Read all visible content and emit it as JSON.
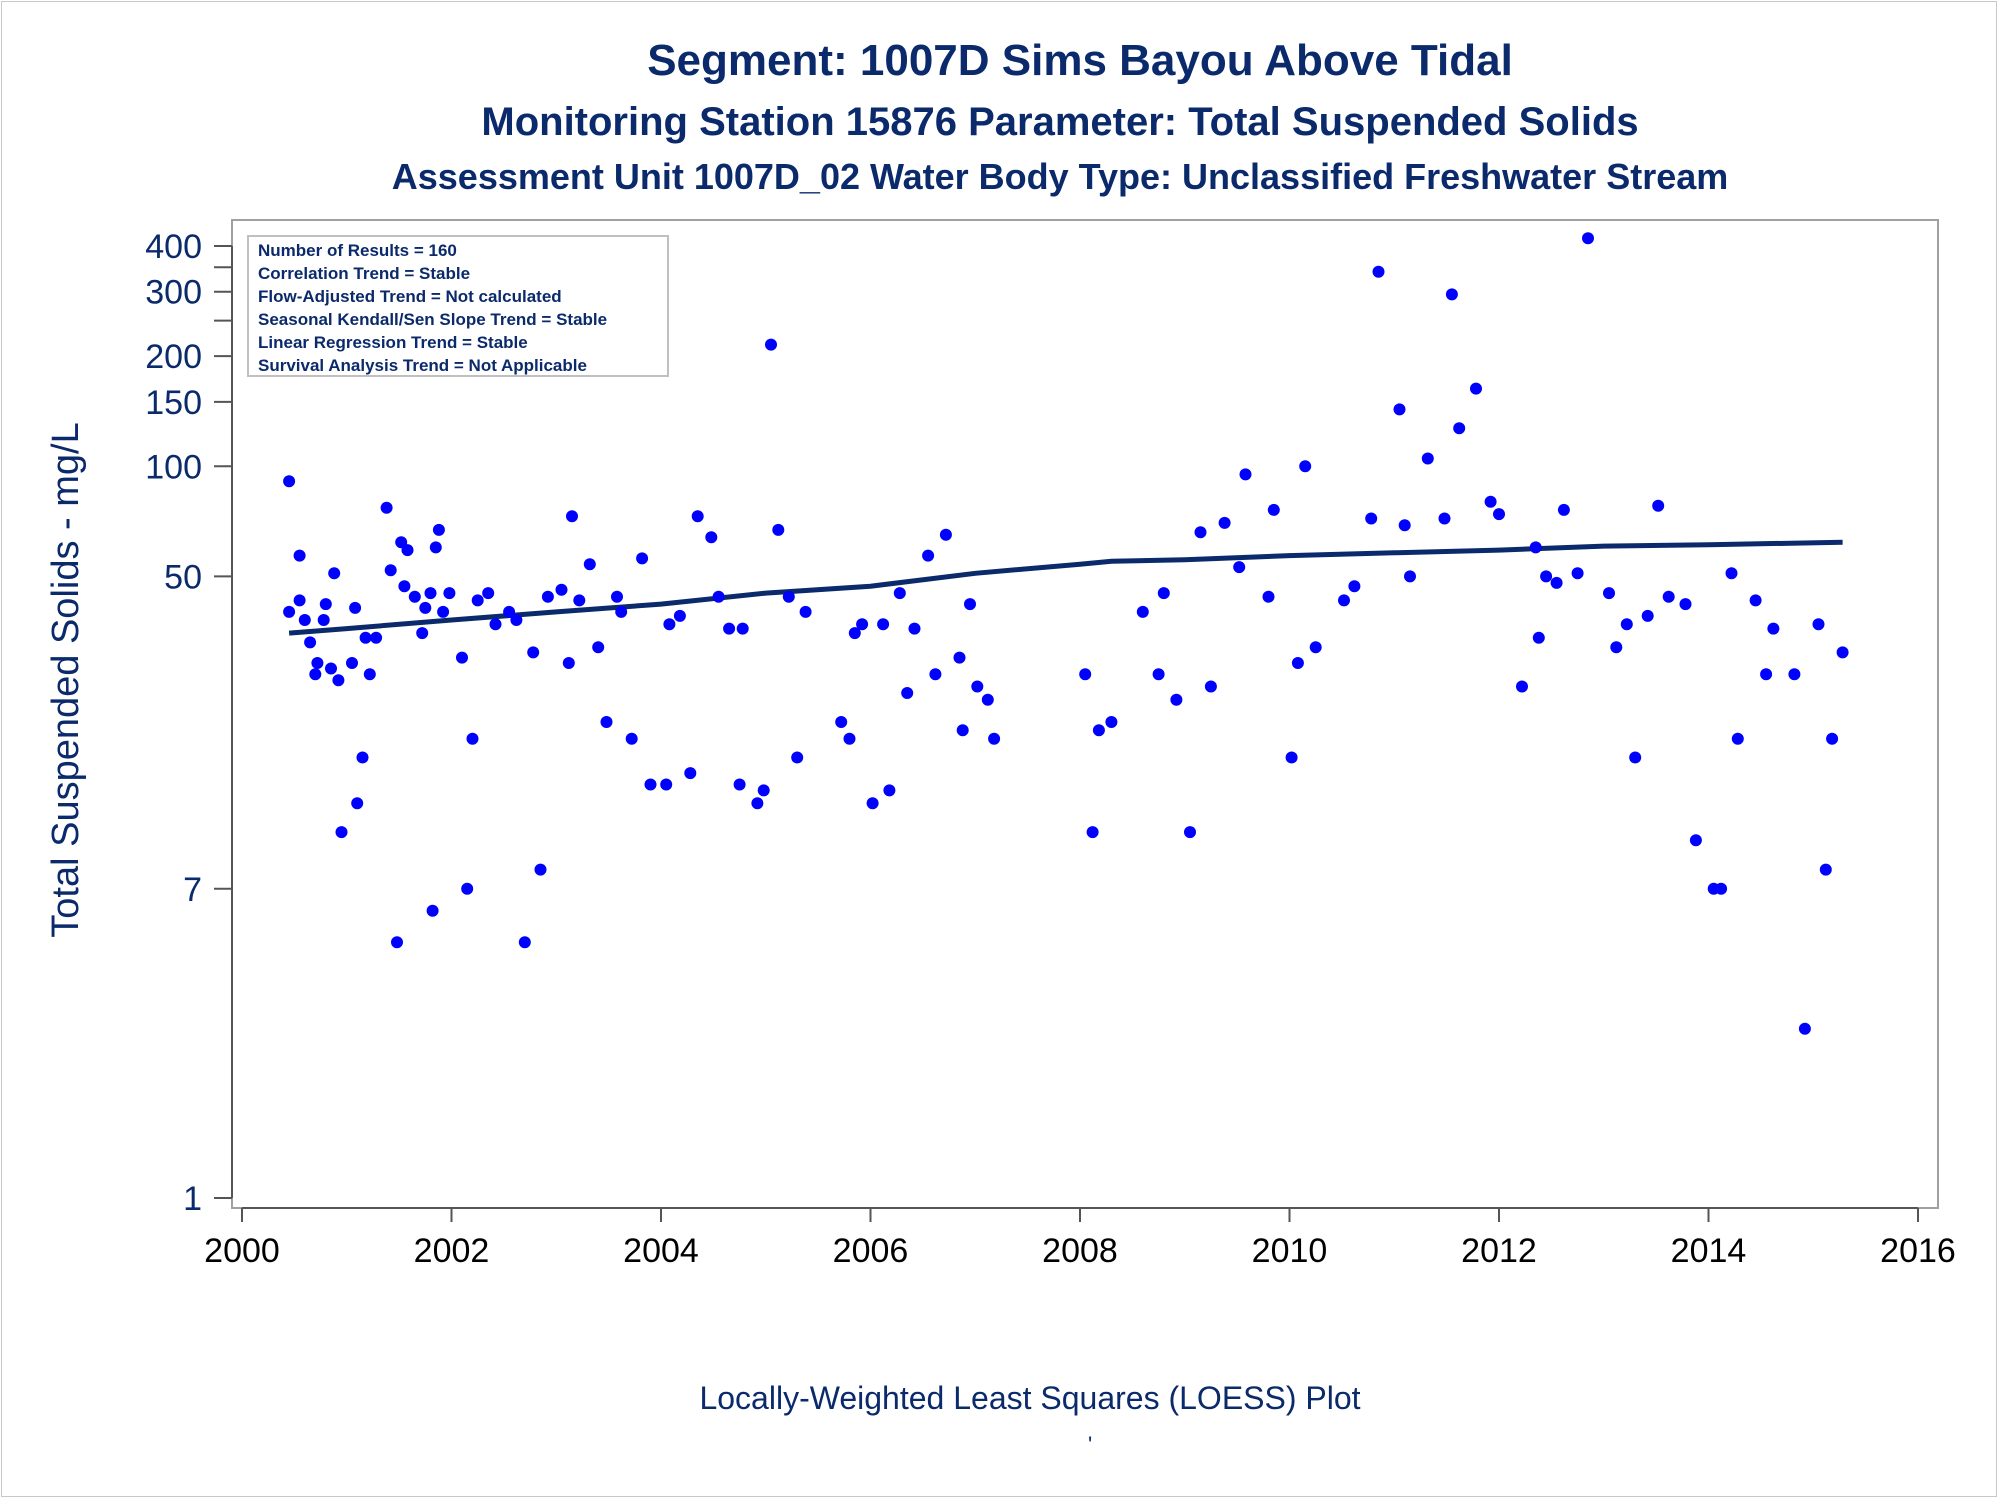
{
  "titles": {
    "line1": "Segment: 1007D  Sims Bayou Above Tidal",
    "line2": "Monitoring Station 15876 Parameter: Total Suspended Solids",
    "line3": "Assessment Unit 1007D_02   Water Body Type: Unclassified Freshwater Stream"
  },
  "legend_box": [
    "Number of Results = 160",
    "Correlation Trend = Stable",
    "Flow-Adjusted Trend = Not calculated",
    "Seasonal Kendall/Sen Slope Trend = Stable",
    "Linear Regression Trend = Stable",
    "Survival Analysis Trend = Not Applicable"
  ],
  "footnote": "Locally-Weighted Least Squares (LOESS) Plot",
  "footnote_mark": "'",
  "colors": {
    "text": "#0b2a6b",
    "points": "#0000ff",
    "line": "#0b2a6b",
    "axis": "#a0a0a0"
  },
  "chart_data": {
    "type": "scatter",
    "ylabel": "Total Suspended Solids - mg/L",
    "xlabel": "",
    "yscale": "log",
    "xlim": [
      2000,
      2016
    ],
    "ylim": [
      1,
      420
    ],
    "xticks": [
      "2000",
      "2002",
      "2004",
      "2006",
      "2008",
      "2010",
      "2012",
      "2014",
      "2016"
    ],
    "yticks": [
      {
        "v": 1,
        "label": "1"
      },
      {
        "v": 7,
        "label": "7"
      },
      {
        "v": 50,
        "label": "50"
      },
      {
        "v": 100,
        "label": "100"
      },
      {
        "v": 150,
        "label": "150"
      },
      {
        "v": 200,
        "label": "200"
      },
      {
        "v": 250,
        "label": ""
      },
      {
        "v": 300,
        "label": "300"
      },
      {
        "v": 350,
        "label": ""
      },
      {
        "v": 400,
        "label": "400"
      }
    ],
    "grid": false,
    "points": [
      [
        2000.45,
        91
      ],
      [
        2000.45,
        40
      ],
      [
        2000.55,
        57
      ],
      [
        2000.55,
        43
      ],
      [
        2000.6,
        38
      ],
      [
        2000.65,
        33
      ],
      [
        2000.7,
        27
      ],
      [
        2000.72,
        29
      ],
      [
        2000.78,
        38
      ],
      [
        2000.8,
        42
      ],
      [
        2000.85,
        28
      ],
      [
        2000.88,
        51
      ],
      [
        2000.92,
        26
      ],
      [
        2000.95,
        10
      ],
      [
        2001.05,
        29
      ],
      [
        2001.08,
        41
      ],
      [
        2001.1,
        12
      ],
      [
        2001.15,
        16
      ],
      [
        2001.18,
        34
      ],
      [
        2001.22,
        27
      ],
      [
        2001.28,
        34
      ],
      [
        2001.38,
        77
      ],
      [
        2001.42,
        52
      ],
      [
        2001.48,
        5
      ],
      [
        2001.52,
        62
      ],
      [
        2001.55,
        47
      ],
      [
        2001.58,
        59
      ],
      [
        2001.65,
        44
      ],
      [
        2001.72,
        35
      ],
      [
        2001.75,
        41
      ],
      [
        2001.8,
        45
      ],
      [
        2001.82,
        6.1
      ],
      [
        2001.85,
        60
      ],
      [
        2001.88,
        67
      ],
      [
        2001.92,
        40
      ],
      [
        2001.98,
        45
      ],
      [
        2002.1,
        30
      ],
      [
        2002.15,
        7
      ],
      [
        2002.2,
        18
      ],
      [
        2002.25,
        43
      ],
      [
        2002.35,
        45
      ],
      [
        2002.42,
        37
      ],
      [
        2002.55,
        40
      ],
      [
        2002.62,
        38
      ],
      [
        2002.7,
        5
      ],
      [
        2002.78,
        31
      ],
      [
        2002.85,
        7.9
      ],
      [
        2002.92,
        44
      ],
      [
        2003.05,
        46
      ],
      [
        2003.12,
        29
      ],
      [
        2003.15,
        73
      ],
      [
        2003.22,
        43
      ],
      [
        2003.32,
        54
      ],
      [
        2003.4,
        32
      ],
      [
        2003.48,
        20
      ],
      [
        2003.58,
        44
      ],
      [
        2003.62,
        40
      ],
      [
        2003.72,
        18
      ],
      [
        2003.82,
        56
      ],
      [
        2003.9,
        13.5
      ],
      [
        2004.05,
        13.5
      ],
      [
        2004.08,
        37
      ],
      [
        2004.18,
        39
      ],
      [
        2004.28,
        14.5
      ],
      [
        2004.35,
        73
      ],
      [
        2004.48,
        64
      ],
      [
        2004.55,
        44
      ],
      [
        2004.65,
        36
      ],
      [
        2004.75,
        13.5
      ],
      [
        2004.78,
        36
      ],
      [
        2004.92,
        12
      ],
      [
        2004.98,
        13
      ],
      [
        2005.05,
        215
      ],
      [
        2005.12,
        67
      ],
      [
        2005.22,
        44
      ],
      [
        2005.3,
        16
      ],
      [
        2005.38,
        40
      ],
      [
        2005.72,
        20
      ],
      [
        2005.8,
        18
      ],
      [
        2005.85,
        35
      ],
      [
        2005.92,
        37
      ],
      [
        2006.02,
        12
      ],
      [
        2006.12,
        37
      ],
      [
        2006.18,
        13
      ],
      [
        2006.28,
        45
      ],
      [
        2006.35,
        24
      ],
      [
        2006.42,
        36
      ],
      [
        2006.55,
        57
      ],
      [
        2006.62,
        27
      ],
      [
        2006.72,
        65
      ],
      [
        2006.85,
        30
      ],
      [
        2006.88,
        19
      ],
      [
        2006.95,
        42
      ],
      [
        2007.02,
        25
      ],
      [
        2007.12,
        23
      ],
      [
        2007.18,
        18
      ],
      [
        2008.05,
        27
      ],
      [
        2008.12,
        10
      ],
      [
        2008.18,
        19
      ],
      [
        2008.3,
        20
      ],
      [
        2008.6,
        40
      ],
      [
        2008.75,
        27
      ],
      [
        2008.8,
        45
      ],
      [
        2008.92,
        23
      ],
      [
        2009.05,
        10
      ],
      [
        2009.15,
        66
      ],
      [
        2009.25,
        25
      ],
      [
        2009.38,
        70
      ],
      [
        2009.52,
        53
      ],
      [
        2009.58,
        95
      ],
      [
        2009.8,
        44
      ],
      [
        2009.85,
        76
      ],
      [
        2010.02,
        16
      ],
      [
        2010.08,
        29
      ],
      [
        2010.15,
        100
      ],
      [
        2010.25,
        32
      ],
      [
        2010.52,
        43
      ],
      [
        2010.62,
        47
      ],
      [
        2010.78,
        72
      ],
      [
        2010.85,
        340
      ],
      [
        2011.05,
        143
      ],
      [
        2011.1,
        69
      ],
      [
        2011.15,
        50
      ],
      [
        2011.32,
        105
      ],
      [
        2011.48,
        72
      ],
      [
        2011.55,
        295
      ],
      [
        2011.62,
        127
      ],
      [
        2011.78,
        163
      ],
      [
        2011.92,
        80
      ],
      [
        2012.0,
        74
      ],
      [
        2012.22,
        25
      ],
      [
        2012.35,
        60
      ],
      [
        2012.38,
        34
      ],
      [
        2012.45,
        50
      ],
      [
        2012.55,
        48
      ],
      [
        2012.62,
        76
      ],
      [
        2012.75,
        51
      ],
      [
        2012.85,
        420
      ],
      [
        2013.05,
        45
      ],
      [
        2013.12,
        32
      ],
      [
        2013.22,
        37
      ],
      [
        2013.3,
        16
      ],
      [
        2013.42,
        39
      ],
      [
        2013.52,
        78
      ],
      [
        2013.62,
        44
      ],
      [
        2013.78,
        42
      ],
      [
        2013.88,
        9.5
      ],
      [
        2014.05,
        7
      ],
      [
        2014.12,
        7
      ],
      [
        2014.22,
        51
      ],
      [
        2014.28,
        18
      ],
      [
        2014.45,
        43
      ],
      [
        2014.55,
        27
      ],
      [
        2014.62,
        36
      ],
      [
        2014.82,
        27
      ],
      [
        2014.92,
        2.9
      ],
      [
        2015.05,
        37
      ],
      [
        2015.12,
        7.9
      ],
      [
        2015.18,
        18
      ],
      [
        2015.28,
        31
      ]
    ],
    "loess": [
      [
        2000.45,
        35
      ],
      [
        2001.0,
        36
      ],
      [
        2002.0,
        38
      ],
      [
        2003.0,
        40
      ],
      [
        2004.0,
        42
      ],
      [
        2005.0,
        45
      ],
      [
        2006.0,
        47
      ],
      [
        2007.0,
        51
      ],
      [
        2008.0,
        54
      ],
      [
        2008.3,
        55
      ],
      [
        2009.0,
        55.5
      ],
      [
        2010.0,
        57
      ],
      [
        2011.0,
        58
      ],
      [
        2012.0,
        59
      ],
      [
        2013.0,
        60.5
      ],
      [
        2014.0,
        61
      ],
      [
        2015.28,
        62
      ]
    ]
  }
}
